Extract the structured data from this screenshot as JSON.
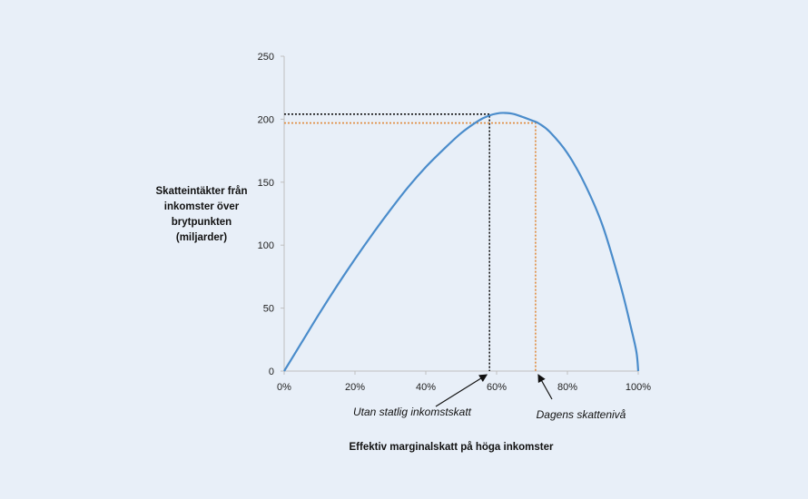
{
  "chart_data": {
    "type": "line",
    "title": "",
    "ylabel_lines": [
      "Skatteintäkter från",
      "inkomster över",
      "brytpunkten",
      "(miljarder)"
    ],
    "xlabel": "Effektiv marginalskatt på höga inkomster",
    "xlim": [
      0,
      100
    ],
    "ylim": [
      0,
      250
    ],
    "x_ticks": [
      0,
      20,
      40,
      60,
      80,
      100
    ],
    "x_tick_labels": [
      "0%",
      "20%",
      "40%",
      "60%",
      "80%",
      "100%"
    ],
    "y_ticks": [
      0,
      50,
      100,
      150,
      200,
      250
    ],
    "y_tick_labels": [
      "0",
      "50",
      "100",
      "150",
      "200",
      "250"
    ],
    "grid": false,
    "series": [
      {
        "color": "#4a8ccb",
        "x": [
          0,
          5,
          10,
          15,
          20,
          25,
          30,
          35,
          40,
          45,
          50,
          55,
          58,
          60,
          62,
          65,
          70,
          72,
          75,
          80,
          85,
          90,
          95,
          98,
          99.5,
          100
        ],
        "y": [
          0,
          23,
          46,
          68,
          89,
          109,
          128,
          146,
          162,
          176,
          189,
          199,
          203,
          204.5,
          205,
          204,
          199,
          196.5,
          190,
          173,
          148,
          115,
          68,
          34,
          15,
          0
        ]
      }
    ],
    "reference_lines": [
      {
        "x": 58,
        "y": 204,
        "color": "#111111",
        "style": "dotted"
      },
      {
        "x": 71,
        "y": 197,
        "color": "#e0893a",
        "style": "dotted"
      }
    ],
    "annotations": [
      {
        "text": "Utan statlig inkomstskatt",
        "points_to_x": 58
      },
      {
        "text": "Dagens skattenivå",
        "points_to_x": 71
      }
    ]
  }
}
